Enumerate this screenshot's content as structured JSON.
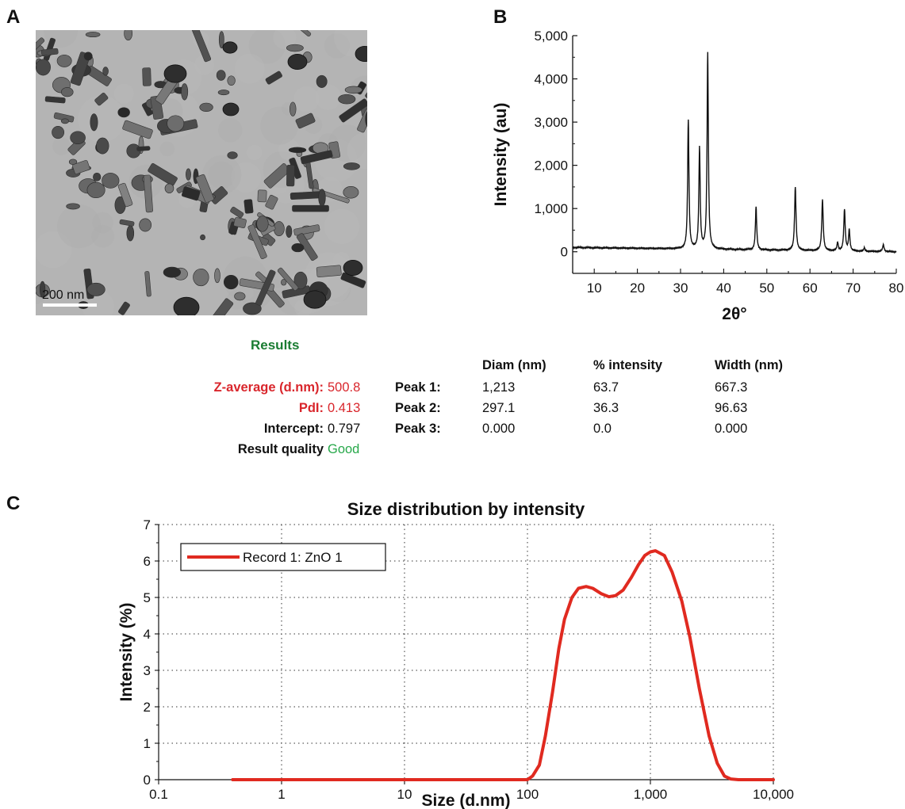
{
  "panels": {
    "a": "A",
    "b": "B",
    "c": "C"
  },
  "tem": {
    "scale_label": "200 nm"
  },
  "results": {
    "title": "Results",
    "z_average": {
      "label": "Z-average (d.nm):",
      "value": "500.8"
    },
    "pdi": {
      "label": "PdI:",
      "value": "0.413"
    },
    "intercept": {
      "label": "Intercept:",
      "value": "0.797"
    },
    "quality": {
      "label": "Result quality",
      "value": "Good"
    },
    "headers": [
      "Diam (nm)",
      "% intensity",
      "Width (nm)"
    ],
    "peaks": [
      {
        "label": "Peak 1:",
        "diam": "1,213",
        "intensity": "63.7",
        "width": "667.3"
      },
      {
        "label": "Peak 2:",
        "diam": "297.1",
        "intensity": "36.3",
        "width": "96.63"
      },
      {
        "label": "Peak 3:",
        "diam": "0.000",
        "intensity": "0.0",
        "width": "0.000"
      }
    ]
  },
  "chart_data": [
    {
      "type": "line",
      "panel": "B",
      "title": "",
      "xlabel": "2θ°",
      "ylabel": "Intensity (au)",
      "xlim": [
        5,
        80
      ],
      "ylim": [
        -500,
        5000
      ],
      "xticks": [
        10,
        20,
        30,
        40,
        50,
        60,
        70,
        80
      ],
      "xtick_labels": [
        "10",
        "20",
        "30",
        "40",
        "50",
        "60",
        "70",
        "80"
      ],
      "yticks": [
        0,
        1000,
        2000,
        3000,
        4000,
        5000
      ],
      "ytick_labels": [
        "0",
        "1,000",
        "2,000",
        "3,000",
        "4,000",
        "5,000"
      ],
      "grid": false,
      "color": "#111111",
      "baseline": {
        "start": 100,
        "end": 0
      },
      "peaks": [
        {
          "x": 31.8,
          "y": 2980,
          "w": 0.18
        },
        {
          "x": 34.4,
          "y": 2330,
          "w": 0.18
        },
        {
          "x": 36.3,
          "y": 4540,
          "w": 0.18
        },
        {
          "x": 47.5,
          "y": 1000,
          "w": 0.18
        },
        {
          "x": 56.6,
          "y": 1460,
          "w": 0.2
        },
        {
          "x": 62.9,
          "y": 1180,
          "w": 0.2
        },
        {
          "x": 66.4,
          "y": 190,
          "w": 0.18
        },
        {
          "x": 68.0,
          "y": 950,
          "w": 0.2
        },
        {
          "x": 69.1,
          "y": 490,
          "w": 0.18
        },
        {
          "x": 72.6,
          "y": 80,
          "w": 0.18
        },
        {
          "x": 77.0,
          "y": 160,
          "w": 0.2
        }
      ]
    },
    {
      "type": "line",
      "panel": "C",
      "title": "Size distribution by intensity",
      "xlabel": "Size (d.nm)",
      "ylabel": "Intensity (%)",
      "xscale": "log",
      "xlim": [
        0.1,
        10000
      ],
      "ylim": [
        0,
        7
      ],
      "xticks": [
        0.1,
        1,
        10,
        100,
        1000,
        10000
      ],
      "xtick_labels": [
        "0.1",
        "1",
        "10",
        "100",
        "1,000",
        "10,000"
      ],
      "yticks": [
        0,
        1,
        2,
        3,
        4,
        5,
        6,
        7
      ],
      "ytick_labels": [
        "0",
        "1",
        "2",
        "3",
        "4",
        "5",
        "6",
        "7"
      ],
      "grid": true,
      "legend": "top-left",
      "series": [
        {
          "name": "Record 1: ZnO 1",
          "color": "#e02a20",
          "x": [
            0.4,
            100,
            110,
            125,
            140,
            160,
            180,
            200,
            230,
            260,
            300,
            340,
            400,
            460,
            520,
            600,
            700,
            800,
            900,
            1000,
            1100,
            1300,
            1500,
            1800,
            2100,
            2500,
            3000,
            3500,
            4000,
            4500,
            5200,
            6000,
            10000
          ],
          "y": [
            0,
            0,
            0.1,
            0.4,
            1.2,
            2.4,
            3.6,
            4.4,
            5.0,
            5.25,
            5.3,
            5.25,
            5.1,
            5.02,
            5.05,
            5.2,
            5.55,
            5.9,
            6.15,
            6.25,
            6.28,
            6.15,
            5.7,
            4.9,
            3.9,
            2.5,
            1.2,
            0.45,
            0.1,
            0.02,
            0,
            0,
            0
          ]
        }
      ]
    }
  ]
}
